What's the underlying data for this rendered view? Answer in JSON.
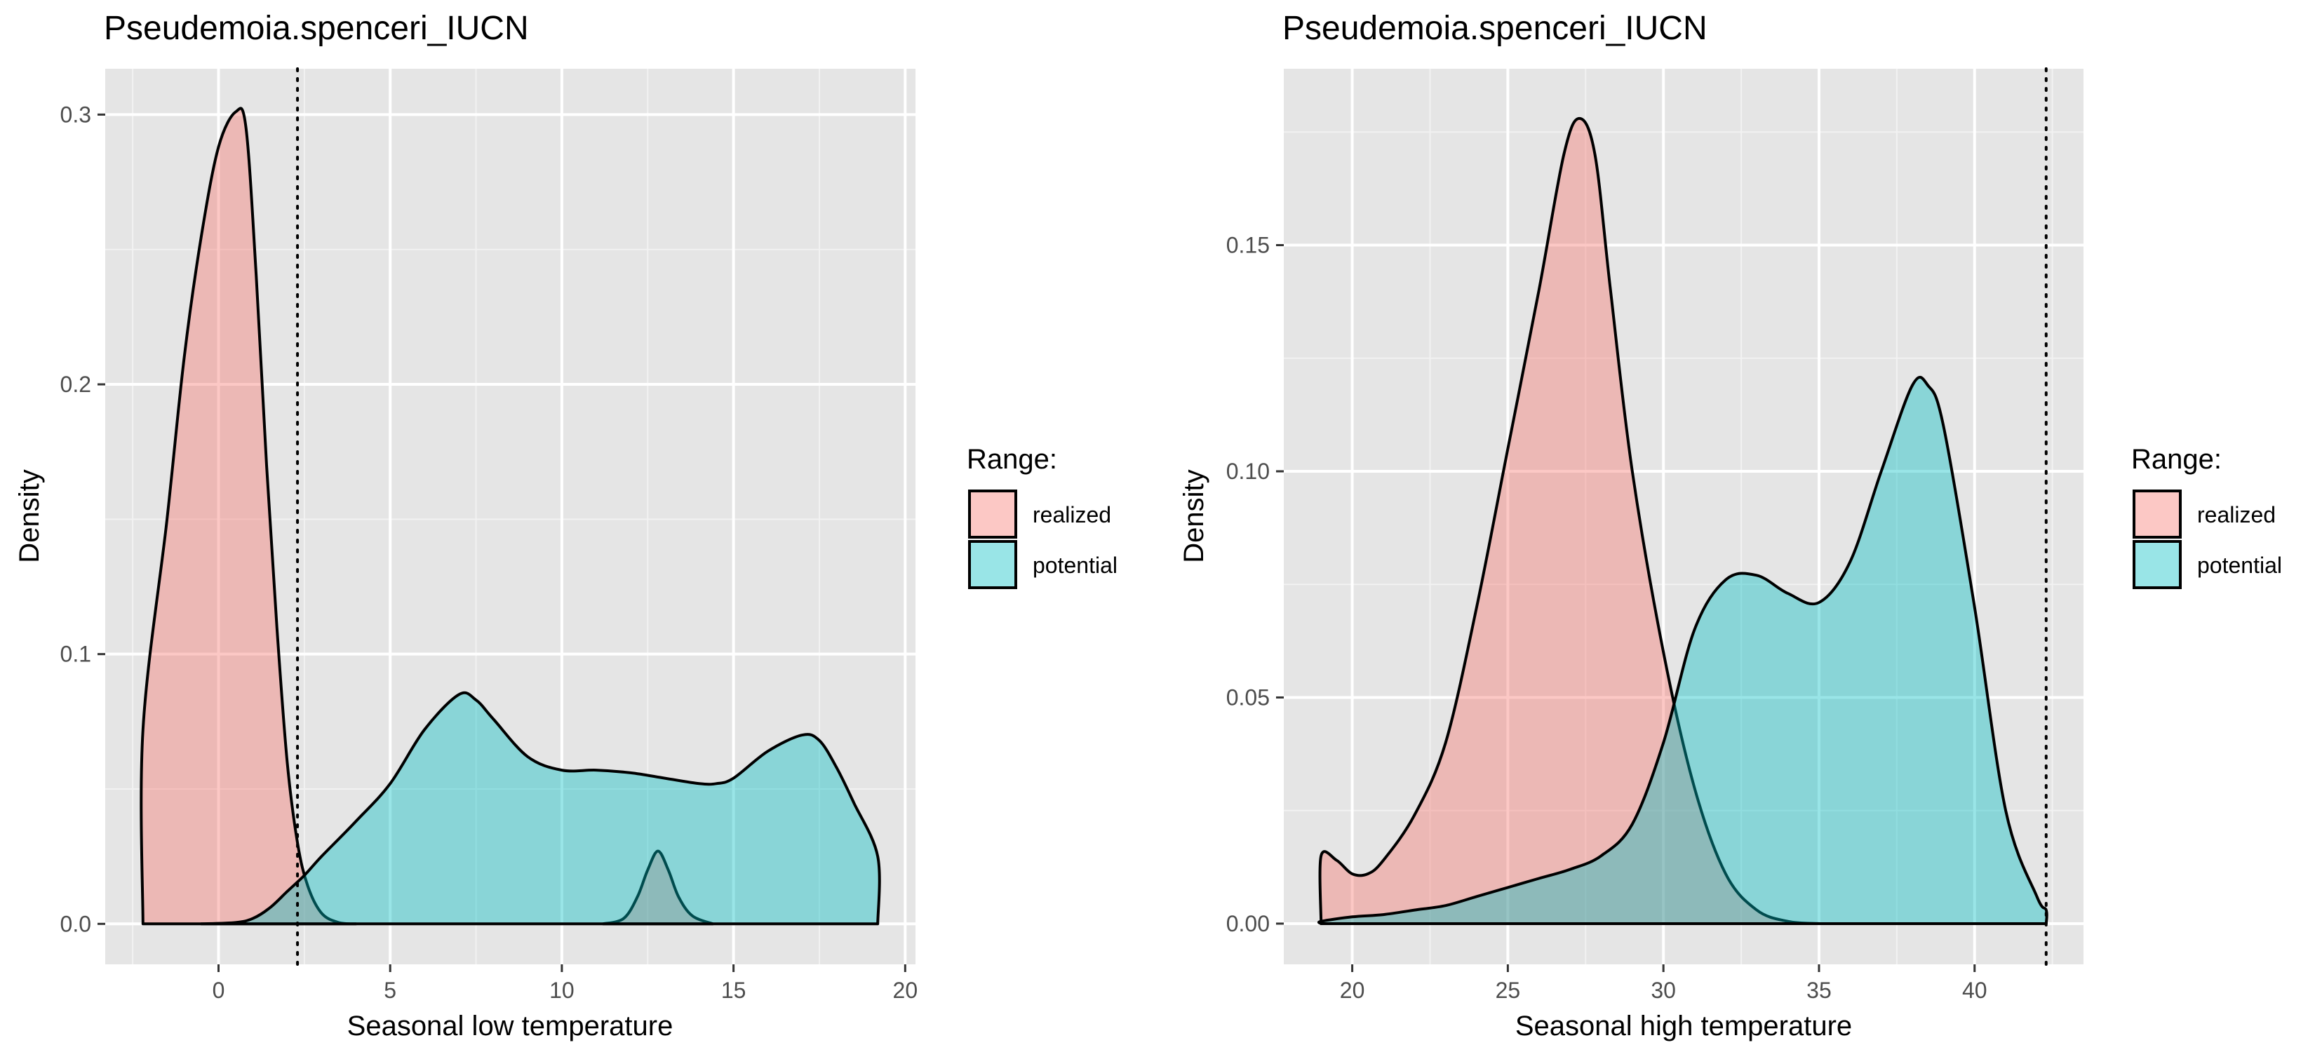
{
  "colors": {
    "panel_bg": "#E5E5E5",
    "grid_major": "#FFFFFF",
    "realized": "#F8766D",
    "potential": "#00BFC4",
    "outline": "#000000"
  },
  "chart_data": [
    {
      "type": "area",
      "title": "Pseudemoia.spenceri_IUCN",
      "xlabel": "Seasonal low temperature",
      "ylabel": "Density",
      "xlim": [
        -3.3,
        20.3
      ],
      "ylim": [
        -0.015,
        0.317
      ],
      "x_ticks": [
        0,
        5,
        10,
        15,
        20
      ],
      "y_ticks": [
        0.0,
        0.1,
        0.2,
        0.3
      ],
      "x_tick_labels": [
        "0",
        "5",
        "10",
        "15",
        "20"
      ],
      "y_tick_labels": [
        "0.0",
        "0.1",
        "0.2",
        "0.3"
      ],
      "grid": true,
      "legend_placement": "right",
      "legend": {
        "title": "Range:",
        "entries": [
          "realized",
          "potential"
        ]
      },
      "vline": {
        "x": 2.3,
        "style": "dotted"
      },
      "series": [
        {
          "name": "realized",
          "fill_alpha": 0.4,
          "points": [
            [
              -2.2,
              0
            ],
            [
              -2.2,
              0.072
            ],
            [
              -1.5,
              0.15
            ],
            [
              -1,
              0.21
            ],
            [
              -0.5,
              0.255
            ],
            [
              0,
              0.288
            ],
            [
              0.5,
              0.301
            ],
            [
              0.8,
              0.295
            ],
            [
              1.1,
              0.24
            ],
            [
              1.4,
              0.17
            ],
            [
              1.7,
              0.11
            ],
            [
              2,
              0.06
            ],
            [
              2.3,
              0.03
            ],
            [
              2.6,
              0.014
            ],
            [
              3,
              0.004
            ],
            [
              3.5,
              0.0005
            ],
            [
              4,
              0
            ]
          ]
        },
        {
          "name": "realized",
          "fill_alpha": 0.4,
          "points": [
            [
              11.2,
              0
            ],
            [
              11.8,
              0.002
            ],
            [
              12.2,
              0.01
            ],
            [
              12.5,
              0.02
            ],
            [
              12.8,
              0.027
            ],
            [
              13.1,
              0.02
            ],
            [
              13.4,
              0.01
            ],
            [
              13.8,
              0.003
            ],
            [
              14.4,
              0
            ]
          ]
        },
        {
          "name": "potential",
          "fill_alpha": 0.4,
          "points": [
            [
              -0.5,
              0
            ],
            [
              0.5,
              0.0005
            ],
            [
              1,
              0.002
            ],
            [
              1.5,
              0.006
            ],
            [
              2,
              0.012
            ],
            [
              2.5,
              0.018
            ],
            [
              3,
              0.025
            ],
            [
              4,
              0.038
            ],
            [
              5,
              0.052
            ],
            [
              6,
              0.072
            ],
            [
              7,
              0.085
            ],
            [
              7.5,
              0.083
            ],
            [
              8,
              0.076
            ],
            [
              9,
              0.062
            ],
            [
              10,
              0.057
            ],
            [
              11,
              0.057
            ],
            [
              12,
              0.056
            ],
            [
              13,
              0.054
            ],
            [
              14,
              0.052
            ],
            [
              14.5,
              0.052
            ],
            [
              15,
              0.054
            ],
            [
              16,
              0.064
            ],
            [
              17,
              0.07
            ],
            [
              17.5,
              0.068
            ],
            [
              18,
              0.058
            ],
            [
              18.5,
              0.045
            ],
            [
              19.2,
              0.025
            ],
            [
              19.2,
              0
            ]
          ]
        }
      ]
    },
    {
      "type": "area",
      "title": "Pseudemoia.spenceri_IUCN",
      "xlabel": "Seasonal high temperature",
      "ylabel": "Density",
      "xlim": [
        17.8,
        43.5
      ],
      "ylim": [
        -0.009,
        0.189
      ],
      "x_ticks": [
        20,
        25,
        30,
        35,
        40
      ],
      "y_ticks": [
        0.0,
        0.05,
        0.1,
        0.15
      ],
      "x_tick_labels": [
        "20",
        "25",
        "30",
        "35",
        "40"
      ],
      "y_tick_labels": [
        "0.00",
        "0.05",
        "0.10",
        "0.15"
      ],
      "grid": true,
      "legend_placement": "right",
      "legend": {
        "title": "Range:",
        "entries": [
          "realized",
          "potential"
        ]
      },
      "vline": {
        "x": 42.3,
        "style": "dotted"
      },
      "series": [
        {
          "name": "realized",
          "fill_alpha": 0.4,
          "points": [
            [
              19,
              0
            ],
            [
              19,
              0.015
            ],
            [
              19.5,
              0.014
            ],
            [
              20,
              0.011
            ],
            [
              20.5,
              0.011
            ],
            [
              21,
              0.014
            ],
            [
              22,
              0.024
            ],
            [
              23,
              0.04
            ],
            [
              24,
              0.07
            ],
            [
              25,
              0.105
            ],
            [
              26,
              0.14
            ],
            [
              26.8,
              0.17
            ],
            [
              27.3,
              0.178
            ],
            [
              27.8,
              0.17
            ],
            [
              28.3,
              0.14
            ],
            [
              29,
              0.1
            ],
            [
              30,
              0.06
            ],
            [
              31,
              0.03
            ],
            [
              32,
              0.011
            ],
            [
              33,
              0.003
            ],
            [
              34,
              0.0005
            ],
            [
              35,
              0
            ]
          ]
        },
        {
          "name": "potential",
          "fill_alpha": 0.4,
          "points": [
            [
              19,
              0
            ],
            [
              19,
              0.0005
            ],
            [
              20,
              0.0015
            ],
            [
              21,
              0.002
            ],
            [
              22,
              0.003
            ],
            [
              23,
              0.004
            ],
            [
              24,
              0.006
            ],
            [
              25,
              0.008
            ],
            [
              26,
              0.01
            ],
            [
              27,
              0.012
            ],
            [
              28,
              0.015
            ],
            [
              29,
              0.022
            ],
            [
              30,
              0.04
            ],
            [
              31,
              0.065
            ],
            [
              32,
              0.076
            ],
            [
              33,
              0.077
            ],
            [
              34,
              0.073
            ],
            [
              35,
              0.071
            ],
            [
              36,
              0.08
            ],
            [
              37,
              0.1
            ],
            [
              38,
              0.119
            ],
            [
              38.5,
              0.119
            ],
            [
              39,
              0.11
            ],
            [
              40,
              0.07
            ],
            [
              41,
              0.025
            ],
            [
              42,
              0.006
            ],
            [
              42.3,
              0.003
            ],
            [
              42.3,
              0
            ]
          ]
        }
      ]
    }
  ]
}
